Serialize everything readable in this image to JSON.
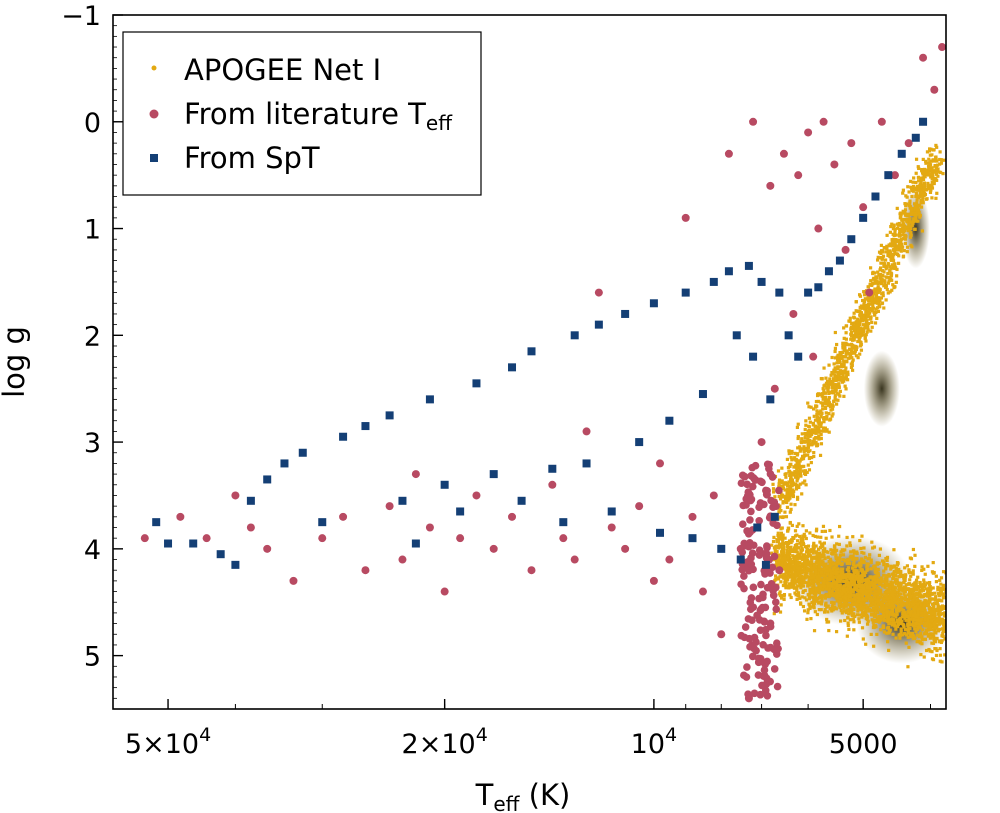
{
  "chart_data": {
    "type": "scatter",
    "xlabel_main": "T",
    "xlabel_sub": "eff",
    "xlabel_unit": " (K)",
    "ylabel": "log g",
    "x_scale": "log",
    "x_reversed": true,
    "xlim": [
      60000,
      3800
    ],
    "ylim": [
      5.5,
      -1
    ],
    "x_ticks": [
      {
        "value": 50000,
        "mant": "5",
        "exp": "4"
      },
      {
        "value": 20000,
        "mant": "2",
        "exp": "4"
      },
      {
        "value": 10000,
        "mant": "",
        "exp": "4"
      },
      {
        "value": 5000,
        "plain": "5000"
      }
    ],
    "y_ticks": [
      {
        "value": -1,
        "label": "−1"
      },
      {
        "value": 0,
        "label": "0"
      },
      {
        "value": 1,
        "label": "1"
      },
      {
        "value": 2,
        "label": "2"
      },
      {
        "value": 3,
        "label": "3"
      },
      {
        "value": 4,
        "label": "4"
      },
      {
        "value": 5,
        "label": "5"
      }
    ],
    "grid": false,
    "legend_position": "top-left",
    "colors": {
      "apogee": "#e3a912",
      "apogee_dense": "#3a3418",
      "literature": "#b84a62",
      "spt": "#143f75"
    },
    "series": [
      {
        "name": "APOGEE Net I",
        "marker": "point",
        "regions": [
          {
            "description": "red giant branch",
            "t_range": [
              6600,
              3900
            ],
            "logg_range": [
              3.6,
              0.3
            ]
          },
          {
            "description": "main sequence / dwarfs",
            "t_range": [
              6700,
              3800
            ],
            "logg_range": [
              5.2,
              3.3
            ]
          }
        ]
      },
      {
        "name": "From literature T",
        "name_sub": "eff",
        "marker": "circle",
        "points": [
          [
            54000,
            3.9
          ],
          [
            48000,
            3.7
          ],
          [
            44000,
            3.9
          ],
          [
            40000,
            3.5
          ],
          [
            38000,
            3.8
          ],
          [
            36000,
            4.0
          ],
          [
            33000,
            4.3
          ],
          [
            30000,
            3.9
          ],
          [
            28000,
            3.7
          ],
          [
            26000,
            4.2
          ],
          [
            24000,
            3.6
          ],
          [
            23000,
            4.1
          ],
          [
            22000,
            3.3
          ],
          [
            21000,
            3.8
          ],
          [
            20000,
            4.4
          ],
          [
            19000,
            3.9
          ],
          [
            18000,
            3.5
          ],
          [
            17000,
            4.0
          ],
          [
            16000,
            3.7
          ],
          [
            15000,
            4.2
          ],
          [
            14000,
            3.4
          ],
          [
            13500,
            3.9
          ],
          [
            13000,
            4.1
          ],
          [
            12500,
            2.9
          ],
          [
            12000,
            1.6
          ],
          [
            11500,
            3.8
          ],
          [
            11000,
            4.0
          ],
          [
            10500,
            3.6
          ],
          [
            10000,
            4.3
          ],
          [
            9800,
            3.2
          ],
          [
            9500,
            4.1
          ],
          [
            9000,
            0.9
          ],
          [
            8800,
            3.7
          ],
          [
            8500,
            4.4
          ],
          [
            8200,
            3.5
          ],
          [
            8000,
            4.8
          ],
          [
            7800,
            0.3
          ],
          [
            7500,
            4.0
          ],
          [
            7300,
            5.4
          ],
          [
            7200,
            0.0
          ],
          [
            7000,
            3.0
          ],
          [
            6800,
            0.6
          ],
          [
            6700,
            2.5
          ],
          [
            6600,
            4.2
          ],
          [
            6500,
            0.3
          ],
          [
            6300,
            1.8
          ],
          [
            6200,
            0.5
          ],
          [
            6000,
            0.1
          ],
          [
            5900,
            2.2
          ],
          [
            5800,
            1.0
          ],
          [
            5700,
            0.0
          ],
          [
            5500,
            0.4
          ],
          [
            5300,
            1.2
          ],
          [
            5200,
            0.2
          ],
          [
            5000,
            0.8
          ],
          [
            4900,
            1.6
          ],
          [
            4700,
            0.0
          ],
          [
            4500,
            0.5
          ],
          [
            4300,
            0.2
          ],
          [
            4100,
            -0.6
          ],
          [
            3950,
            -0.3
          ],
          [
            3850,
            -0.7
          ]
        ]
      },
      {
        "name": "From SpT",
        "marker": "square",
        "points": [
          [
            52000,
            3.75
          ],
          [
            50000,
            3.95
          ],
          [
            46000,
            3.95
          ],
          [
            42000,
            4.05
          ],
          [
            40000,
            4.15
          ],
          [
            38000,
            3.55
          ],
          [
            36000,
            3.35
          ],
          [
            34000,
            3.2
          ],
          [
            32000,
            3.1
          ],
          [
            30000,
            3.75
          ],
          [
            28000,
            2.95
          ],
          [
            26000,
            2.85
          ],
          [
            24000,
            2.75
          ],
          [
            23000,
            3.55
          ],
          [
            22000,
            3.95
          ],
          [
            21000,
            2.6
          ],
          [
            20000,
            3.4
          ],
          [
            19000,
            3.65
          ],
          [
            18000,
            2.45
          ],
          [
            17000,
            3.3
          ],
          [
            16000,
            2.3
          ],
          [
            15500,
            3.55
          ],
          [
            15000,
            2.15
          ],
          [
            14000,
            3.25
          ],
          [
            13500,
            3.75
          ],
          [
            13000,
            2.0
          ],
          [
            12500,
            3.2
          ],
          [
            12000,
            1.9
          ],
          [
            11500,
            3.65
          ],
          [
            11000,
            1.8
          ],
          [
            10500,
            3.0
          ],
          [
            10000,
            1.7
          ],
          [
            9800,
            3.85
          ],
          [
            9500,
            2.8
          ],
          [
            9000,
            1.6
          ],
          [
            8800,
            3.9
          ],
          [
            8500,
            2.55
          ],
          [
            8200,
            1.5
          ],
          [
            8000,
            4.0
          ],
          [
            7800,
            1.4
          ],
          [
            7600,
            2.0
          ],
          [
            7500,
            4.1
          ],
          [
            7300,
            1.35
          ],
          [
            7200,
            2.2
          ],
          [
            7100,
            3.8
          ],
          [
            7000,
            1.5
          ],
          [
            6900,
            4.15
          ],
          [
            6800,
            2.6
          ],
          [
            6700,
            3.7
          ],
          [
            6600,
            1.6
          ],
          [
            6400,
            2.0
          ],
          [
            6200,
            2.2
          ],
          [
            6000,
            1.6
          ],
          [
            5800,
            1.55
          ],
          [
            5600,
            1.4
          ],
          [
            5400,
            1.3
          ],
          [
            5200,
            1.1
          ],
          [
            5000,
            0.9
          ],
          [
            4800,
            0.7
          ],
          [
            4600,
            0.5
          ],
          [
            4400,
            0.3
          ],
          [
            4200,
            0.15
          ],
          [
            4100,
            0.0
          ]
        ]
      }
    ]
  }
}
